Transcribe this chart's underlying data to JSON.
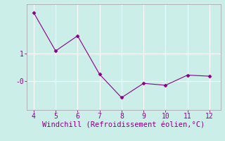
{
  "x": [
    4,
    5,
    6,
    7,
    8,
    9,
    10,
    11,
    12
  ],
  "y": [
    2.5,
    1.1,
    1.65,
    0.25,
    -0.6,
    -0.08,
    -0.15,
    0.22,
    0.18
  ],
  "line_color": "#880088",
  "marker": "D",
  "marker_size": 2.5,
  "bg_color": "#cceee8",
  "grid_color": "#ffffff",
  "xlabel": "Windchill (Refroidissement éolien,°C)",
  "xlabel_color": "#880088",
  "xlabel_fontsize": 7.5,
  "xlim": [
    3.7,
    12.5
  ],
  "ylim": [
    -1.05,
    2.8
  ],
  "tick_color": "#880088",
  "tick_fontsize": 7,
  "spine_color": "#aaaaaa",
  "font_family": "monospace"
}
